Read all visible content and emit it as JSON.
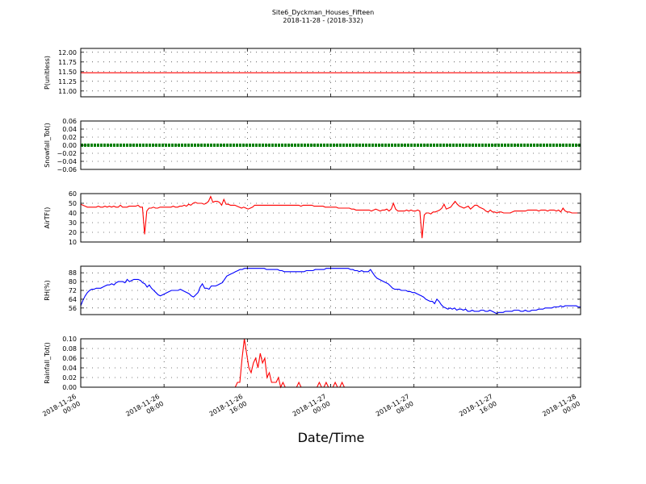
{
  "figure": {
    "title": "Site6_Dyckman_Houses_Fifteen",
    "subtitle": "2018-11-28 - (2018-332)",
    "xlabel": "Date/Time"
  },
  "colors": {
    "red": "#ff0000",
    "green": "#008000",
    "blue": "#0000ff",
    "grid": "#000000"
  },
  "chart_data": [
    {
      "type": "line",
      "ylabel": "P(unitless)",
      "ylim": [
        10.85,
        12.1
      ],
      "yticks": [
        12.0,
        11.75,
        11.5,
        11.25,
        11.0
      ],
      "yticklabels": [
        "12.00",
        "11.75",
        "11.50",
        "11.25",
        "11.00"
      ],
      "grid": true,
      "color": "red",
      "values": [
        11.47,
        11.47
      ]
    },
    {
      "type": "line",
      "ylabel": "Snowfall_Tot()",
      "ylim": [
        -0.06,
        0.06
      ],
      "yticks": [
        0.06,
        0.04,
        0.02,
        0.0,
        -0.02,
        -0.04,
        -0.06
      ],
      "yticklabels": [
        "0.06",
        "0.04",
        "0.02",
        "0.00",
        "−0.02",
        "−0.04",
        "−0.06"
      ],
      "grid": true,
      "color": "green",
      "marker": "dot",
      "values": [
        0,
        0
      ]
    },
    {
      "type": "line",
      "ylabel": "AirTF()",
      "ylim": [
        10,
        60
      ],
      "yticks": [
        60,
        50,
        40,
        30,
        20,
        10
      ],
      "yticklabels": [
        "60",
        "50",
        "40",
        "30",
        "20",
        "10"
      ],
      "grid": true,
      "color": "red",
      "values": [
        49,
        48,
        47,
        46,
        46,
        46,
        46,
        46,
        47,
        46,
        46,
        47,
        46,
        47,
        46,
        47,
        46,
        46,
        48,
        46,
        46,
        46,
        47,
        47,
        47,
        47,
        48,
        46,
        46,
        18,
        42,
        45,
        45,
        46,
        45,
        45,
        46,
        46,
        46,
        46,
        46,
        46,
        47,
        46,
        46,
        47,
        47,
        48,
        47,
        49,
        48,
        50,
        51,
        50,
        50,
        50,
        49,
        50,
        52,
        57,
        51,
        52,
        52,
        51,
        48,
        54,
        49,
        49,
        48,
        48,
        48,
        47,
        46,
        45,
        46,
        45,
        44,
        45,
        46,
        48,
        48,
        48,
        48,
        48,
        48,
        48,
        48,
        48,
        48,
        48,
        48,
        48,
        48,
        48,
        48,
        48,
        48,
        48,
        48,
        48,
        47,
        48,
        48,
        48,
        48,
        48,
        47,
        47,
        47,
        47,
        47,
        46,
        46,
        46,
        46,
        46,
        46,
        45,
        45,
        45,
        45,
        45,
        45,
        44,
        44,
        43,
        43,
        43,
        43,
        43,
        43,
        43,
        42,
        43,
        44,
        43,
        42,
        43,
        43,
        44,
        42,
        44,
        50,
        44,
        42,
        42,
        42,
        42,
        43,
        42,
        43,
        42,
        42,
        43,
        42,
        14,
        38,
        40,
        40,
        39,
        41,
        41,
        42,
        43,
        45,
        49,
        44,
        45,
        46,
        49,
        52,
        49,
        47,
        46,
        45,
        46,
        47,
        44,
        46,
        48,
        48,
        46,
        45,
        44,
        42,
        41,
        43,
        41,
        41,
        40,
        41,
        41,
        40,
        40,
        40,
        40,
        41,
        42,
        42,
        42,
        42,
        42,
        42,
        43,
        43,
        43,
        43,
        43,
        42,
        43,
        43,
        43,
        42,
        43,
        43,
        43,
        42,
        43,
        41,
        45,
        42,
        41,
        41,
        40,
        40,
        40,
        40,
        40
      ]
    },
    {
      "type": "line",
      "ylabel": "RH(%)",
      "ylim": [
        50,
        94
      ],
      "yticks": [
        88,
        80,
        72,
        64,
        56
      ],
      "yticklabels": [
        "88",
        "80",
        "72",
        "64",
        "56"
      ],
      "grid": true,
      "color": "blue",
      "values": [
        58,
        63,
        67,
        70,
        72,
        73,
        73,
        74,
        74,
        74,
        75,
        76,
        77,
        77,
        78,
        77,
        79,
        80,
        80,
        80,
        79,
        82,
        80,
        81,
        82,
        82,
        82,
        81,
        79,
        78,
        75,
        77,
        74,
        72,
        70,
        68,
        67,
        68,
        69,
        70,
        71,
        72,
        72,
        72,
        72,
        73,
        72,
        71,
        70,
        69,
        67,
        66,
        68,
        70,
        75,
        78,
        74,
        74,
        73,
        76,
        76,
        76,
        77,
        78,
        79,
        82,
        85,
        86,
        87,
        88,
        89,
        90,
        91,
        91,
        92,
        92,
        92,
        92,
        92,
        92,
        92,
        92,
        92,
        92,
        91,
        91,
        91,
        91,
        91,
        91,
        90,
        90,
        89,
        89,
        89,
        89,
        89,
        89,
        89,
        89,
        89,
        89,
        90,
        90,
        90,
        90,
        91,
        91,
        91,
        91,
        91,
        92,
        92,
        92,
        92,
        92,
        92,
        92,
        92,
        92,
        92,
        92,
        91,
        91,
        90,
        90,
        89,
        90,
        89,
        89,
        89,
        91,
        88,
        85,
        83,
        82,
        81,
        80,
        79,
        78,
        76,
        74,
        73,
        73,
        73,
        72,
        72,
        72,
        71,
        71,
        70,
        70,
        69,
        68,
        67,
        66,
        64,
        63,
        62,
        62,
        60,
        64,
        62,
        59,
        57,
        56,
        55,
        56,
        55,
        56,
        54,
        55,
        55,
        54,
        55,
        53,
        53,
        54,
        53,
        53,
        53,
        54,
        54,
        53,
        53,
        54,
        53,
        52,
        51,
        52,
        52,
        52,
        53,
        53,
        53,
        53,
        54,
        54,
        54,
        53,
        53,
        54,
        53,
        53,
        54,
        54,
        54,
        55,
        55,
        55,
        56,
        56,
        56,
        56,
        57,
        57,
        57,
        58,
        57,
        58,
        58,
        58,
        58,
        58,
        58,
        57,
        57
      ]
    },
    {
      "type": "line",
      "ylabel": "Rainfall_Tot()",
      "ylim": [
        0,
        0.1
      ],
      "yticks": [
        0.1,
        0.08,
        0.06,
        0.04,
        0.02,
        0.0
      ],
      "yticklabels": [
        "0.10",
        "0.08",
        "0.06",
        "0.04",
        "0.02",
        "0.00"
      ],
      "grid": true,
      "color": "red",
      "points": [
        [
          0,
          0
        ],
        [
          68,
          0
        ],
        [
          69,
          0.01
        ],
        [
          70,
          0.01
        ],
        [
          71,
          0.06
        ],
        [
          72,
          0.1
        ],
        [
          73,
          0.07
        ],
        [
          74,
          0.04
        ],
        [
          75,
          0.03
        ],
        [
          76,
          0.05
        ],
        [
          77,
          0.06
        ],
        [
          78,
          0.04
        ],
        [
          79,
          0.07
        ],
        [
          80,
          0.05
        ],
        [
          81,
          0.06
        ],
        [
          82,
          0.02
        ],
        [
          83,
          0.03
        ],
        [
          84,
          0.01
        ],
        [
          85,
          0.01
        ],
        [
          86,
          0.01
        ],
        [
          87,
          0.02
        ],
        [
          88,
          0
        ],
        [
          89,
          0.01
        ],
        [
          90,
          0
        ],
        [
          95,
          0
        ],
        [
          96,
          0.01
        ],
        [
          97,
          0
        ],
        [
          104,
          0
        ],
        [
          105,
          0.01
        ],
        [
          106,
          0
        ],
        [
          107,
          0
        ],
        [
          108,
          0.01
        ],
        [
          109,
          0
        ],
        [
          111,
          0
        ],
        [
          112,
          0.01
        ],
        [
          113,
          0
        ],
        [
          114,
          0
        ],
        [
          115,
          0.01
        ],
        [
          116,
          0
        ],
        [
          220,
          0
        ]
      ],
      "xmax": 220
    }
  ],
  "x_axis": {
    "tick_labels": [
      [
        "2018-11-26",
        "00:00"
      ],
      [
        "2018-11-26",
        "08:00"
      ],
      [
        "2018-11-26",
        "16:00"
      ],
      [
        "2018-11-27",
        "00:00"
      ],
      [
        "2018-11-27",
        "08:00"
      ],
      [
        "2018-11-27",
        "16:00"
      ],
      [
        "2018-11-28",
        "00:00"
      ]
    ]
  }
}
